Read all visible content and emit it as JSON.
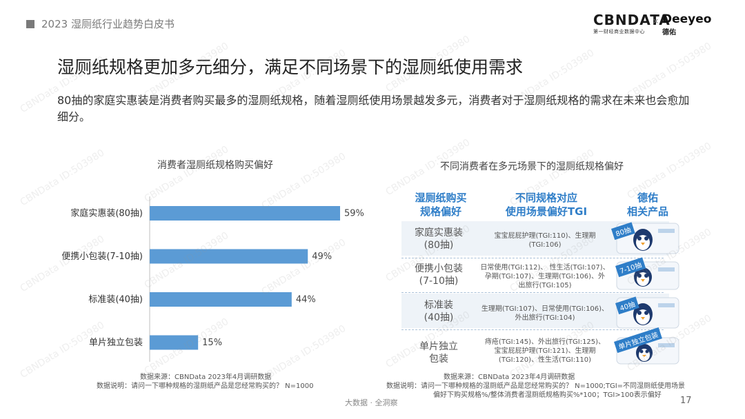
{
  "header": {
    "title": "2023 湿厕纸行业趋势白皮书"
  },
  "logos": {
    "cbndata": "CBNDATA",
    "cbndata_sub": "第一财经商业数据中心",
    "times": "×",
    "deeyeo": "Deeyeo",
    "deeyeo_sub": "德佑"
  },
  "page": {
    "title": "湿厕纸规格更加多元细分，满足不同场景下的湿厕纸使用需求",
    "description": "80抽的家庭实惠装是消费者购买最多的湿厕纸规格，随着湿厕纸使用场景越发多元，消费者对于湿厕纸规格的需求在未来也会愈加细分。"
  },
  "chart_data": {
    "type": "bar",
    "orientation": "horizontal",
    "title": "消费者湿厕纸规格购买偏好",
    "categories": [
      "家庭实惠装(80抽)",
      "便携小包装(7-10抽)",
      "标准装(40抽)",
      "单片独立包装"
    ],
    "values": [
      59,
      49,
      44,
      15
    ],
    "value_labels": [
      "59%",
      "49%",
      "44%",
      "15%"
    ],
    "unit": "%",
    "xlim": [
      0,
      59
    ],
    "bar_color": "#5b9bd5",
    "grid": false,
    "legend": "none"
  },
  "left_source": {
    "line1": "数据来源：CBNData 2023年4月调研数据",
    "line2": "数据说明：请问一下哪种规格的湿厕纸产品是您经常购买的？ N=1000"
  },
  "table": {
    "title": "不同消费者在多元场景下的湿厕纸规格偏好",
    "headers": [
      [
        "湿厕纸购买",
        "规格偏好"
      ],
      [
        "不同规格对应",
        "使用场景偏好TGI"
      ],
      [
        "德佑",
        "相关产品"
      ]
    ],
    "rows": [
      {
        "spec": [
          "家庭实惠装",
          "(80抽)"
        ],
        "scenes": [
          "宝宝屁屁护理(TGI:110)、生理期",
          "(TGI:106)"
        ],
        "tag": "80抽"
      },
      {
        "spec": [
          "便携小包装",
          "(7-10抽)"
        ],
        "scenes": [
          "日常使用(TGI:112)、 性生活(TGI:107)、",
          "孕期(TGI:107)、生理期(TGI:106)、外",
          "出旅行(TGI:105)"
        ],
        "tag": "7-10抽"
      },
      {
        "spec": [
          "标准装",
          "(40抽)"
        ],
        "scenes": [
          "生理期(TGI:107)、日常使用(TGI:106)、",
          "外出旅行(TGI:104)"
        ],
        "tag": "40抽"
      },
      {
        "spec": [
          "单片独立",
          "包装"
        ],
        "scenes": [
          "痔疮(TGI:145)、外出旅行(TGI:125)、",
          "宝宝屁屁护理(TGI:121)、生理期",
          "(TGI:120)、性生活(TGI:110)"
        ],
        "tag": "单片独立包装"
      }
    ],
    "header_color": "#2f7ec8"
  },
  "right_source": {
    "line1": "数据来源：CBNData 2023年4月调研数据",
    "line2": "数据说明：请问一下哪种规格的湿厕纸产品是您经常购买的？ N=1000;TGI=不同湿厕纸使用场景",
    "line3": "偏好下购买规格%/整体消费者湿厕纸规格购买%*100；TGI>100表示偏好"
  },
  "footer": {
    "center": "大数据 · 全洞察",
    "page_number": "17"
  },
  "watermark": "CBNData ID:503980"
}
